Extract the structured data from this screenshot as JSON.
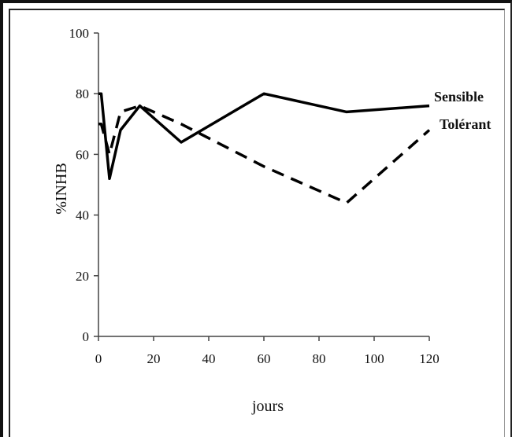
{
  "chart_data": {
    "type": "line",
    "title": "",
    "xlabel": "jours",
    "ylabel": "%INHB",
    "xlim": [
      0,
      120
    ],
    "ylim": [
      0,
      100
    ],
    "x_ticks": [
      "0",
      "20",
      "40",
      "60",
      "80",
      "100",
      "120"
    ],
    "y_ticks": [
      "0",
      "20",
      "40",
      "60",
      "80",
      "100"
    ],
    "grid": false,
    "legend": "inline-right",
    "series": [
      {
        "name": "Sensible",
        "style": "solid",
        "color": "#000000",
        "x": [
          0,
          1,
          4,
          8,
          15,
          30,
          60,
          90,
          120
        ],
        "y": [
          80,
          80,
          52,
          68,
          76,
          64,
          80,
          74,
          76
        ]
      },
      {
        "name": "Tolérant",
        "style": "dashed",
        "color": "#000000",
        "x": [
          0,
          1,
          4,
          8,
          15,
          30,
          60,
          90,
          120
        ],
        "y": [
          70,
          70,
          60,
          74,
          76,
          70,
          56,
          44,
          68
        ]
      }
    ]
  }
}
